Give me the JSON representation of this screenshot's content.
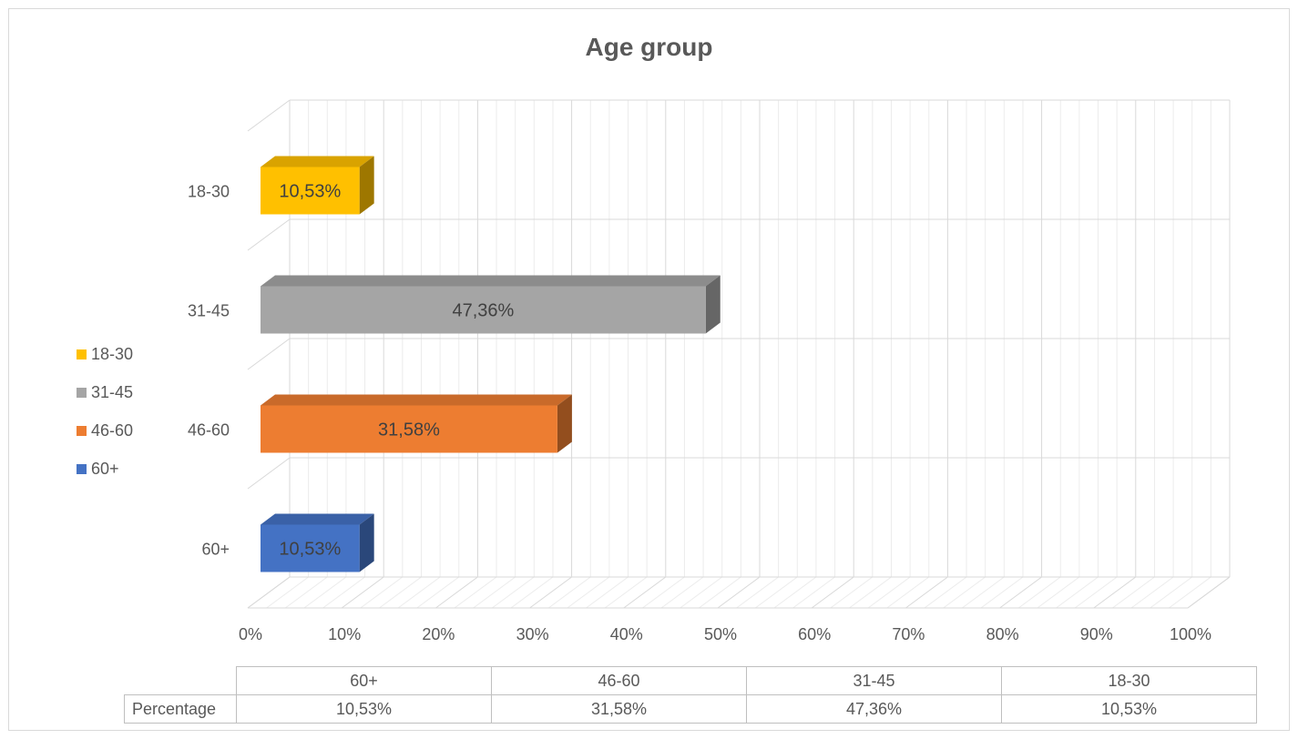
{
  "chart_data": {
    "type": "bar",
    "orientation": "horizontal",
    "style": "3d",
    "title": "Age group",
    "categories": [
      "60+",
      "46-60",
      "31-45",
      "18-30"
    ],
    "values": [
      10.53,
      31.58,
      47.36,
      10.53
    ],
    "value_labels": [
      "10,53%",
      "31,58%",
      "47,36%",
      "10,53%"
    ],
    "colors": [
      "#4472c4",
      "#ed7d31",
      "#a5a5a5",
      "#ffc000"
    ],
    "xlim": [
      0,
      100
    ],
    "x_ticks": [
      "0%",
      "10%",
      "20%",
      "30%",
      "40%",
      "50%",
      "60%",
      "70%",
      "80%",
      "90%",
      "100%"
    ],
    "grid": true,
    "legend": {
      "position": "left",
      "entries": [
        "18-30",
        "31-45",
        "46-60",
        "60+"
      ],
      "colors": [
        "#ffc000",
        "#a5a5a5",
        "#ed7d31",
        "#4472c4"
      ]
    },
    "data_table": {
      "row_header": "Percentage",
      "columns": [
        "60+",
        "46-60",
        "31-45",
        "18-30"
      ],
      "values": [
        "10,53%",
        "31,58%",
        "47,36%",
        "10,53%"
      ]
    }
  }
}
